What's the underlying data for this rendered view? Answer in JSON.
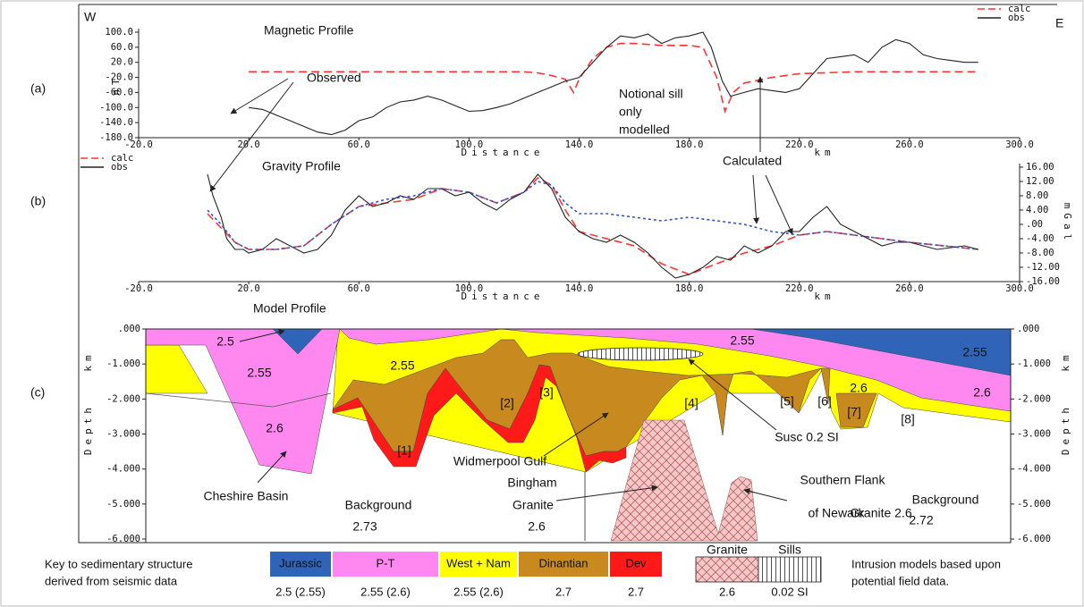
{
  "figure": {
    "west": "W",
    "east": "E",
    "panels": [
      "(a)",
      "(b)",
      "(c)"
    ]
  },
  "chart_data": [
    {
      "type": "line",
      "title": "Magnetic Profile",
      "xlabel": "Distance",
      "xunit": "km",
      "ylabel": "nT",
      "xlim": [
        -20,
        300
      ],
      "ylim": [
        -180,
        100
      ],
      "xticks": [
        {
          "value": -20,
          "label": "-20.0"
        },
        {
          "value": 20,
          "label": "20.0"
        },
        {
          "value": 60,
          "label": "60.0"
        },
        {
          "value": 100,
          "label": "100.0"
        },
        {
          "value": 140,
          "label": "140.0"
        },
        {
          "value": 180,
          "label": "180.0"
        },
        {
          "value": 220,
          "label": "220.0"
        },
        {
          "value": 260,
          "label": "260.0"
        },
        {
          "value": 300,
          "label": "300.0"
        }
      ],
      "yticks": [
        {
          "value": 100,
          "label": "100.0"
        },
        {
          "value": 60,
          "label": "60.0"
        },
        {
          "value": 20,
          "label": "20.0"
        },
        {
          "value": -20,
          "label": "-20.0"
        },
        {
          "value": -60,
          "label": "-60.0"
        },
        {
          "value": -100,
          "label": "-100.0"
        },
        {
          "value": -140,
          "label": "-140.0"
        },
        {
          "value": -180,
          "label": "-180.0"
        }
      ],
      "yaxis": "left",
      "legend": "upper right",
      "annotations": [
        "Observed",
        "Notional sill",
        "only",
        "modelled"
      ],
      "series": [
        {
          "name": "calc",
          "color": "#ff3333",
          "dashed": true,
          "x": [
            20,
            40,
            60,
            80,
            100,
            120,
            125,
            130,
            135,
            138,
            140,
            145,
            150,
            155,
            160,
            170,
            180,
            185,
            190,
            193,
            196,
            200,
            210,
            220,
            240,
            260,
            285
          ],
          "values": [
            -5,
            -5,
            -5,
            -5,
            -5,
            -5,
            -8,
            -15,
            -25,
            -60,
            -25,
            30,
            60,
            70,
            70,
            65,
            65,
            60,
            -20,
            -110,
            -60,
            -35,
            -20,
            -10,
            -5,
            -5,
            -5
          ]
        },
        {
          "name": "obs",
          "color": "#222222",
          "dashed": false,
          "x": [
            20,
            25,
            30,
            35,
            40,
            45,
            50,
            55,
            60,
            65,
            70,
            75,
            80,
            85,
            90,
            95,
            100,
            105,
            110,
            115,
            120,
            125,
            130,
            135,
            140,
            145,
            150,
            155,
            160,
            165,
            170,
            175,
            180,
            185,
            188,
            192,
            195,
            200,
            205,
            210,
            215,
            220,
            225,
            230,
            235,
            240,
            245,
            250,
            255,
            260,
            265,
            270,
            275,
            280,
            285
          ],
          "values": [
            -100,
            -105,
            -120,
            -135,
            -150,
            -165,
            -172,
            -160,
            -135,
            -125,
            -100,
            -85,
            -80,
            -70,
            -80,
            -95,
            -110,
            -108,
            -100,
            -90,
            -75,
            -60,
            -45,
            -30,
            -20,
            20,
            60,
            90,
            85,
            95,
            70,
            85,
            90,
            100,
            60,
            -30,
            -70,
            -60,
            -50,
            -55,
            -60,
            -50,
            -10,
            30,
            35,
            40,
            20,
            60,
            80,
            70,
            40,
            30,
            25,
            20,
            20
          ]
        }
      ]
    },
    {
      "type": "line",
      "title": "Gravity Profile",
      "xlabel": "Distance",
      "xunit": "km",
      "ylabel": "mGal",
      "xlim": [
        -20,
        300
      ],
      "ylim": [
        -16,
        16
      ],
      "xticks": [
        {
          "value": -20,
          "label": "-20.0"
        },
        {
          "value": 20,
          "label": "20.0"
        },
        {
          "value": 60,
          "label": "60.0"
        },
        {
          "value": 100,
          "label": "100.0"
        },
        {
          "value": 140,
          "label": "140.0"
        },
        {
          "value": 180,
          "label": "180.0"
        },
        {
          "value": 220,
          "label": "220.0"
        },
        {
          "value": 260,
          "label": "260.0"
        },
        {
          "value": 300,
          "label": "300.0"
        }
      ],
      "yticks": [
        {
          "value": 16,
          "label": "16.00"
        },
        {
          "value": 12,
          "label": "12.00"
        },
        {
          "value": 8,
          "label": "8.00"
        },
        {
          "value": 4,
          "label": "4.00"
        },
        {
          "value": 0,
          "label": ".00"
        },
        {
          "value": -4,
          "label": "-4.00"
        },
        {
          "value": -8,
          "label": "-8.00"
        },
        {
          "value": -12,
          "label": "-12.00"
        },
        {
          "value": -16,
          "label": "-16.00"
        }
      ],
      "yaxis": "right",
      "legend": "upper left",
      "annotations": [
        "Calculated"
      ],
      "series": [
        {
          "name": "calc",
          "color": "#ff3333",
          "dashed": true,
          "x": [
            5,
            10,
            15,
            20,
            30,
            40,
            50,
            60,
            70,
            80,
            90,
            100,
            110,
            120,
            125,
            130,
            135,
            140,
            150,
            160,
            170,
            180,
            190,
            200,
            210,
            220,
            230,
            240,
            260,
            285
          ],
          "values": [
            3,
            -1,
            -5,
            -7,
            -7,
            -6,
            0,
            5,
            6,
            7,
            10,
            9,
            6,
            9,
            13,
            11,
            4,
            -2,
            -4,
            -6,
            -11,
            -14,
            -11,
            -8,
            -6,
            -3,
            -2,
            -3,
            -5,
            -7
          ]
        },
        {
          "name": "obs",
          "color": "#222222",
          "dashed": false,
          "x": [
            5,
            7,
            10,
            12,
            15,
            18,
            20,
            25,
            30,
            35,
            40,
            45,
            50,
            55,
            60,
            65,
            70,
            75,
            80,
            85,
            90,
            95,
            100,
            105,
            110,
            115,
            120,
            125,
            130,
            135,
            140,
            145,
            150,
            155,
            160,
            165,
            170,
            175,
            180,
            185,
            190,
            195,
            200,
            205,
            210,
            215,
            220,
            225,
            230,
            235,
            240,
            245,
            250,
            255,
            260,
            265,
            270,
            280,
            285
          ],
          "values": [
            14,
            8,
            2,
            -4,
            -7,
            -7,
            -8,
            -7,
            -4,
            -6,
            -8,
            -7,
            -3,
            4,
            8,
            5,
            6,
            8,
            7,
            10,
            10,
            8,
            9,
            6,
            4,
            7,
            9,
            14,
            10,
            2,
            -2,
            -4,
            -5,
            -3,
            -5,
            -8,
            -12,
            -15,
            -14,
            -12,
            -9,
            -10,
            -6,
            -8,
            -6,
            -2,
            -2,
            2,
            5,
            0,
            -2,
            -4,
            -6,
            -5,
            -5,
            -6,
            -7,
            -6,
            -7
          ]
        },
        {
          "color": "#3355cc",
          "dashed": true,
          "x": [
            5,
            10,
            15,
            20,
            30,
            40,
            50,
            60,
            70,
            80,
            90,
            100,
            110,
            120,
            125,
            130,
            135,
            140,
            150,
            160,
            170,
            180,
            190,
            200,
            210,
            220,
            230,
            240,
            260,
            285
          ],
          "values": [
            4,
            0,
            -5,
            -7,
            -7,
            -6,
            0,
            5,
            7,
            8,
            10,
            9,
            6,
            9,
            12,
            11,
            6,
            3,
            3,
            2,
            1,
            2,
            1,
            0,
            -2,
            -3,
            -2,
            -3,
            -5,
            -7
          ]
        }
      ]
    },
    {
      "type": "section",
      "title": "Model Profile",
      "ylabel": "Depth",
      "yunit": "km",
      "ylim": [
        -6,
        0
      ],
      "yticks": [
        {
          "value": 0,
          "label": ".000"
        },
        {
          "value": -1,
          "label": "-1.000"
        },
        {
          "value": -2,
          "label": "-2.000"
        },
        {
          "value": -3,
          "label": "-3.000"
        },
        {
          "value": -4,
          "label": "-4.000"
        },
        {
          "value": -5,
          "label": "-5.000"
        },
        {
          "value": -6,
          "label": "-6.000"
        }
      ],
      "labels": [
        "2.5",
        "2.55",
        "2.6",
        "Cheshire Basin",
        "2.55",
        "[1]",
        "Background",
        "2.73",
        "[2]",
        "[3]",
        "[4]",
        "Widmerpool Gulf",
        "Bingham",
        "Granite",
        "2.6",
        "2.55",
        "[5]",
        "[6]",
        "[7]",
        "2.6",
        "[8]",
        "2.55",
        "2.6",
        "Susc 0.2 SI",
        "Southern Flank",
        "of Newark",
        "Granite 2.6",
        "Background",
        "2.72"
      ]
    }
  ],
  "key": {
    "title": [
      "Key to sedimentary structure",
      "derived from seismic data"
    ],
    "sediments": [
      {
        "name": "Jurassic",
        "density": "2.5 (2.55)",
        "color": "#2f64b8"
      },
      {
        "name": "P-T",
        "density": "2.55 (2.6)",
        "color": "#ff88f0"
      },
      {
        "name": "West + Nam",
        "density": "2.55 (2.6)",
        "color": "#ffff00"
      },
      {
        "name": "Dinantian",
        "density": "2.7",
        "color": "#c88a1e"
      },
      {
        "name": "Dev",
        "density": "2.7",
        "color": "#ff1a1a"
      }
    ],
    "intrusions": [
      {
        "name": "Granite",
        "value": "2.6"
      },
      {
        "name": "Sills",
        "value": "0.02 SI"
      }
    ],
    "note": [
      "Intrusion models based upon",
      "potential field data."
    ]
  }
}
